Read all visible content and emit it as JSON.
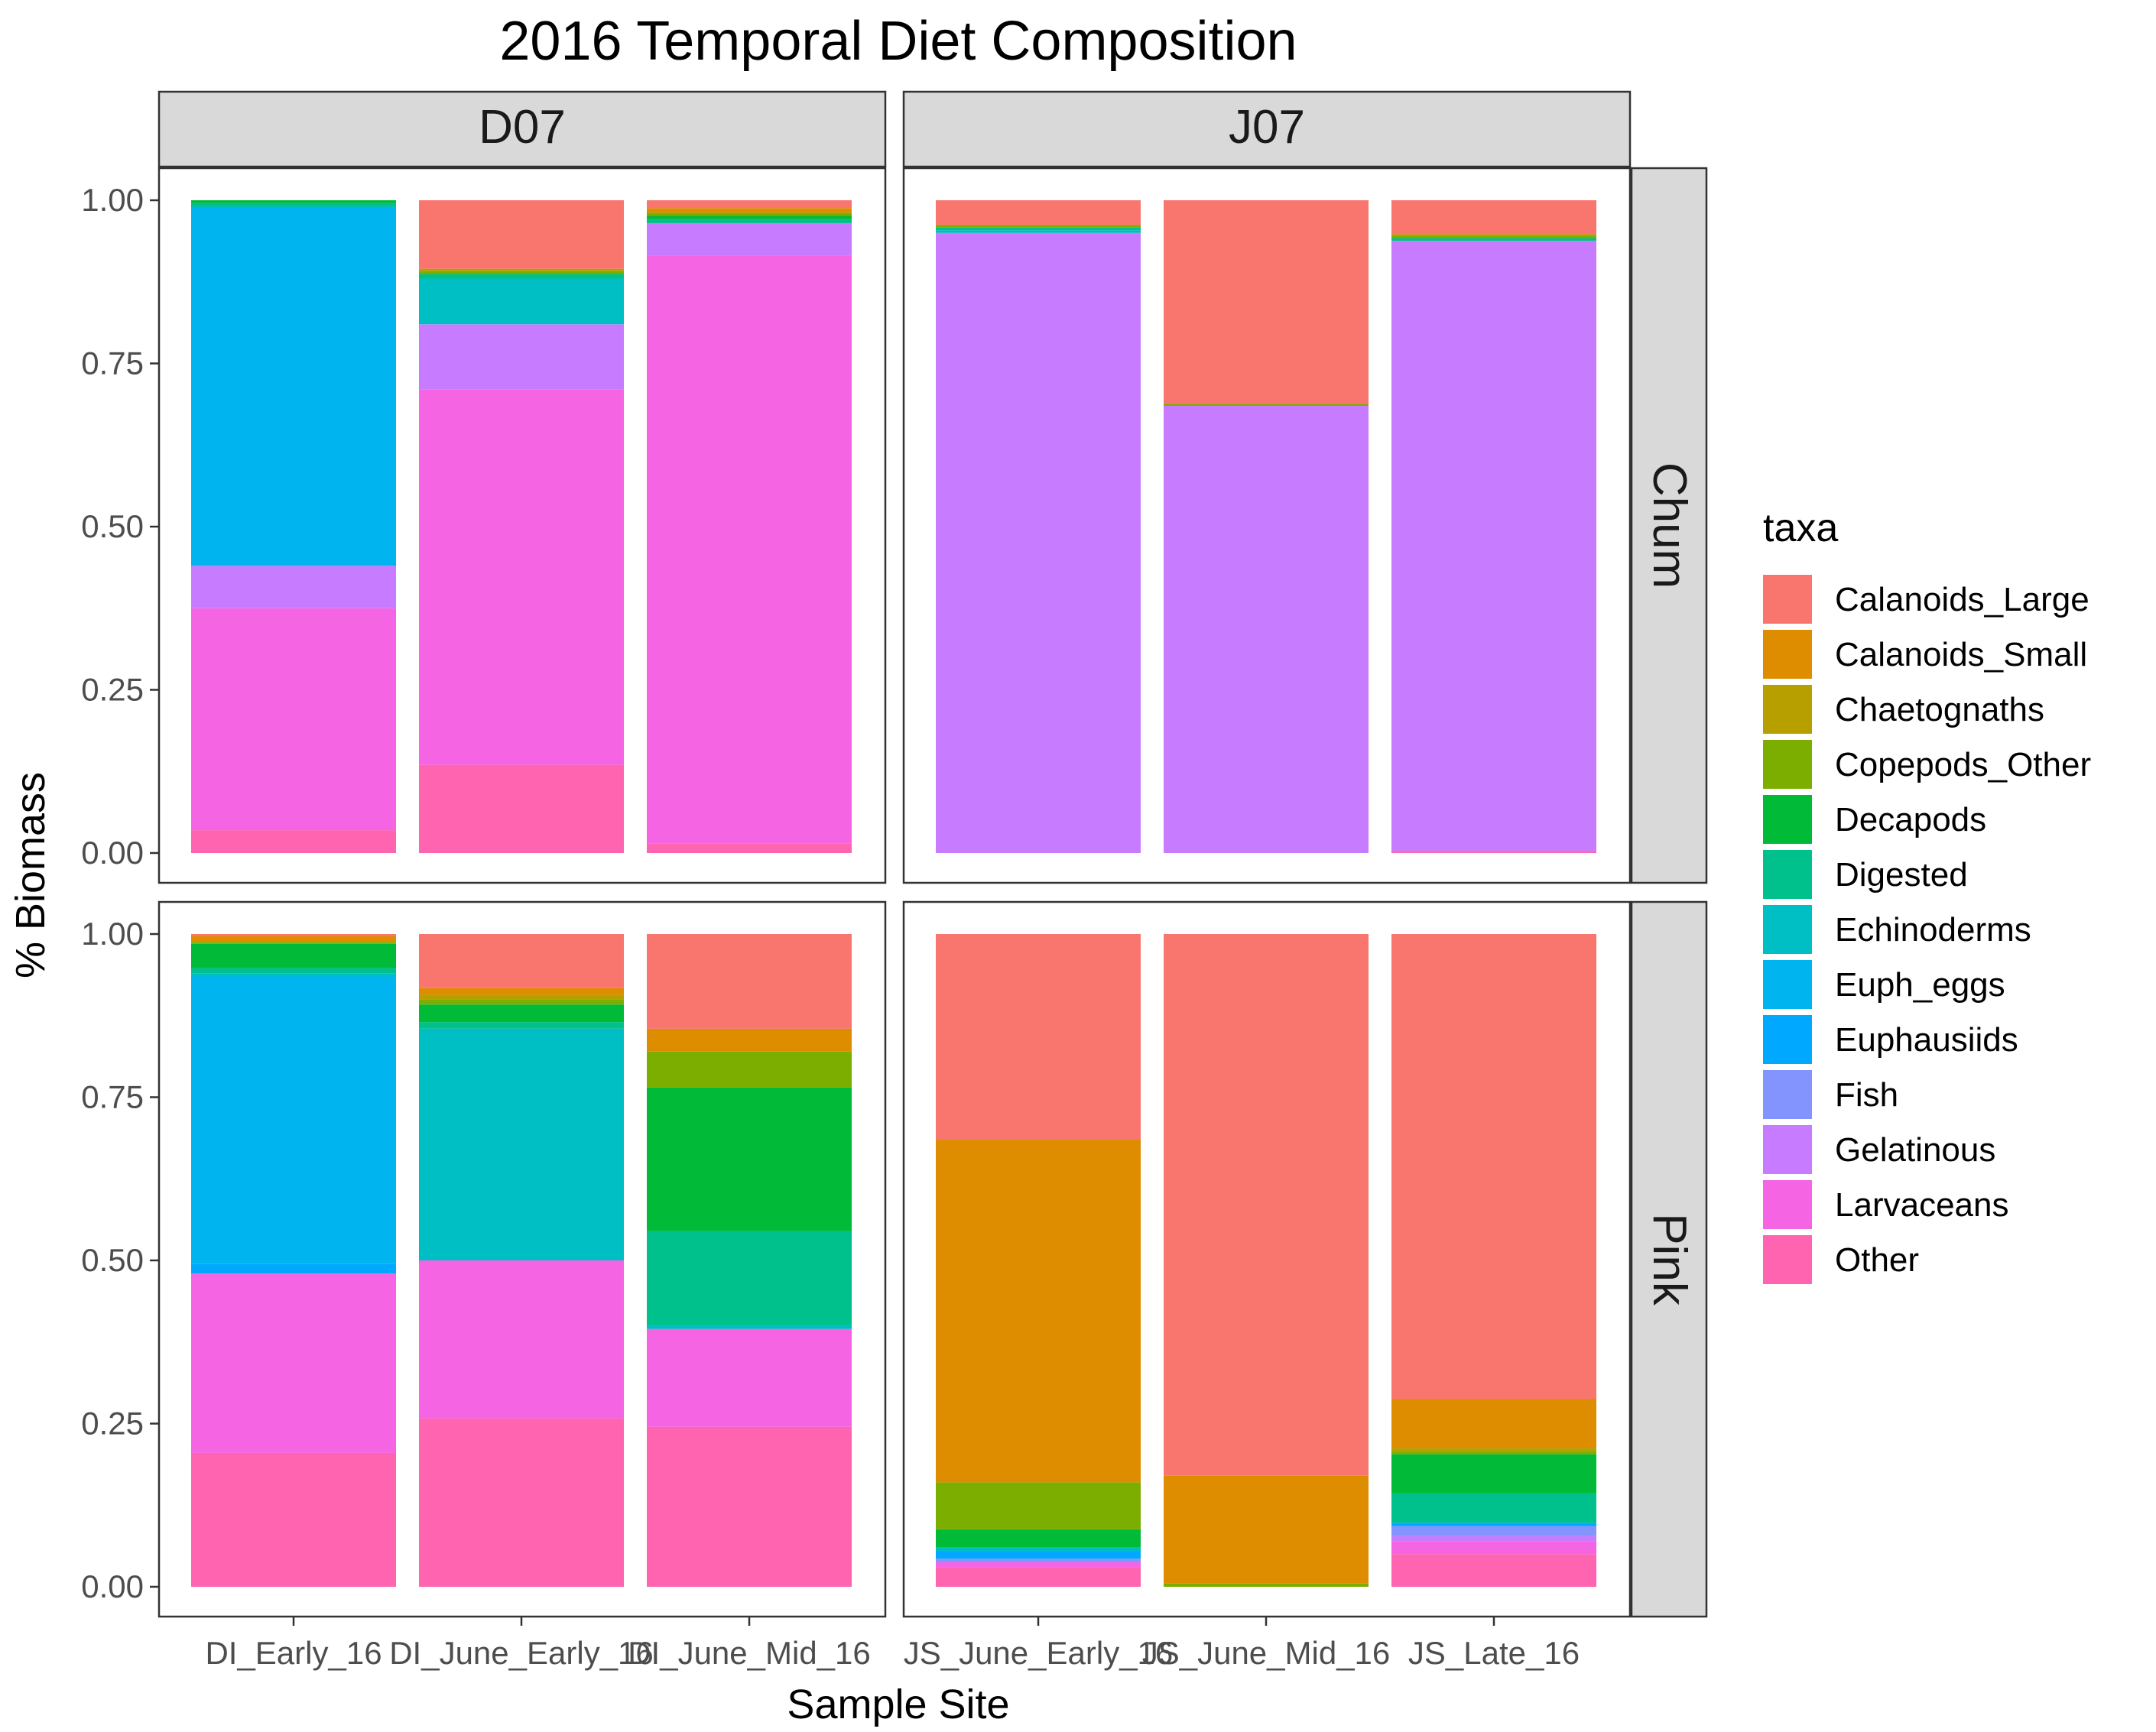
{
  "chart_data": {
    "type": "bar",
    "stacked": true,
    "title": "2016 Temporal Diet Composition",
    "xlabel": "Sample Site",
    "ylabel": "% Biomass",
    "ylim": [
      0,
      1
    ],
    "y_ticks": [
      "0.00",
      "0.25",
      "0.50",
      "0.75",
      "1.00"
    ],
    "grid": false,
    "legend": {
      "title": "taxa",
      "position": "right"
    },
    "taxa": [
      {
        "name": "Calanoids_Large",
        "color": "#F8766D"
      },
      {
        "name": "Calanoids_Small",
        "color": "#DE8C00"
      },
      {
        "name": "Chaetognaths",
        "color": "#B79F00"
      },
      {
        "name": "Copepods_Other",
        "color": "#7CAE00"
      },
      {
        "name": "Decapods",
        "color": "#00BA38"
      },
      {
        "name": "Digested",
        "color": "#00C08B"
      },
      {
        "name": "Echinoderms",
        "color": "#00BFC4"
      },
      {
        "name": "Euph_eggs",
        "color": "#00B4F0"
      },
      {
        "name": "Euphausiids",
        "color": "#00A9FF"
      },
      {
        "name": "Fish",
        "color": "#8494FF"
      },
      {
        "name": "Gelatinous",
        "color": "#C77CFF"
      },
      {
        "name": "Larvaceans",
        "color": "#F564E3"
      },
      {
        "name": "Other",
        "color": "#FF64B0"
      }
    ],
    "columns": [
      "D07",
      "J07"
    ],
    "rows": [
      "Chum",
      "Pink"
    ],
    "panels": [
      {
        "column": "D07",
        "row": "Chum",
        "bars": [
          {
            "category": "DI_Early_16",
            "values": {
              "Other": 0.035,
              "Larvaceans": 0.34,
              "Gelatinous": 0.065,
              "Euph_eggs": 0.55,
              "Digested": 0.006,
              "Decapods": 0.004
            }
          },
          {
            "category": "DI_June_Early_16",
            "values": {
              "Other": 0.135,
              "Larvaceans": 0.575,
              "Gelatinous": 0.1,
              "Echinoderms": 0.07,
              "Digested": 0.007,
              "Copepods_Other": 0.005,
              "Chaetognaths": 0.003,
              "Calanoids_Large": 0.105
            }
          },
          {
            "category": "DI_June_Mid_16",
            "values": {
              "Other": 0.015,
              "Larvaceans": 0.9,
              "Gelatinous": 0.05,
              "Digested": 0.006,
              "Decapods": 0.005,
              "Copepods_Other": 0.005,
              "Calanoids_Small": 0.007,
              "Calanoids_Large": 0.012
            }
          }
        ]
      },
      {
        "column": "J07",
        "row": "Chum",
        "bars": [
          {
            "category": "JS_June_Early_16",
            "values": {
              "Gelatinous": 0.95,
              "Echinoderms": 0.004,
              "Digested": 0.004,
              "Copepods_Other": 0.004,
              "Calanoids_Large": 0.038
            }
          },
          {
            "category": "JS_June_Mid_16",
            "values": {
              "Gelatinous": 0.685,
              "Copepods_Other": 0.003,
              "Calanoids_Large": 0.312
            }
          },
          {
            "category": "JS_Late_16",
            "values": {
              "Other": 0.003,
              "Gelatinous": 0.935,
              "Digested": 0.004,
              "Copepods_Other": 0.004,
              "Chaetognaths": 0.002,
              "Calanoids_Large": 0.052
            }
          }
        ]
      },
      {
        "column": "D07",
        "row": "Pink",
        "bars": [
          {
            "category": "DI_Early_16",
            "values": {
              "Other": 0.205,
              "Larvaceans": 0.275,
              "Euphausiids": 0.015,
              "Euph_eggs": 0.44,
              "Echinoderms": 0.005,
              "Digested": 0.008,
              "Decapods": 0.037,
              "Copepods_Other": 0.003,
              "Calanoids_Small": 0.009,
              "Calanoids_Large": 0.003
            }
          },
          {
            "category": "DI_June_Early_16",
            "values": {
              "Other": 0.258,
              "Larvaceans": 0.242,
              "Echinoderms": 0.355,
              "Digested": 0.01,
              "Decapods": 0.027,
              "Copepods_Other": 0.008,
              "Chaetognaths": 0.007,
              "Calanoids_Small": 0.01,
              "Calanoids_Large": 0.083
            }
          },
          {
            "category": "DI_June_Mid_16",
            "values": {
              "Other": 0.245,
              "Larvaceans": 0.15,
              "Echinoderms": 0.005,
              "Digested": 0.145,
              "Decapods": 0.22,
              "Copepods_Other": 0.055,
              "Calanoids_Small": 0.035,
              "Calanoids_Large": 0.145
            }
          }
        ]
      },
      {
        "column": "J07",
        "row": "Pink",
        "bars": [
          {
            "category": "JS_June_Early_16",
            "values": {
              "Other": 0.03,
              "Larvaceans": 0.008,
              "Fish": 0.005,
              "Euphausiids": 0.012,
              "Echinoderms": 0.005,
              "Decapods": 0.028,
              "Copepods_Other": 0.072,
              "Calanoids_Small": 0.525,
              "Calanoids_Large": 0.315
            }
          },
          {
            "category": "JS_June_Mid_16",
            "values": {
              "Copepods_Other": 0.005,
              "Calanoids_Small": 0.165,
              "Calanoids_Large": 0.83
            }
          },
          {
            "category": "JS_Late_16",
            "values": {
              "Other": 0.05,
              "Larvaceans": 0.02,
              "Gelatinous": 0.008,
              "Fish": 0.015,
              "Euphausiids": 0.005,
              "Digested": 0.045,
              "Decapods": 0.06,
              "Copepods_Other": 0.005,
              "Chaetognaths": 0.005,
              "Calanoids_Small": 0.075,
              "Calanoids_Large": 0.712
            }
          }
        ]
      }
    ]
  }
}
